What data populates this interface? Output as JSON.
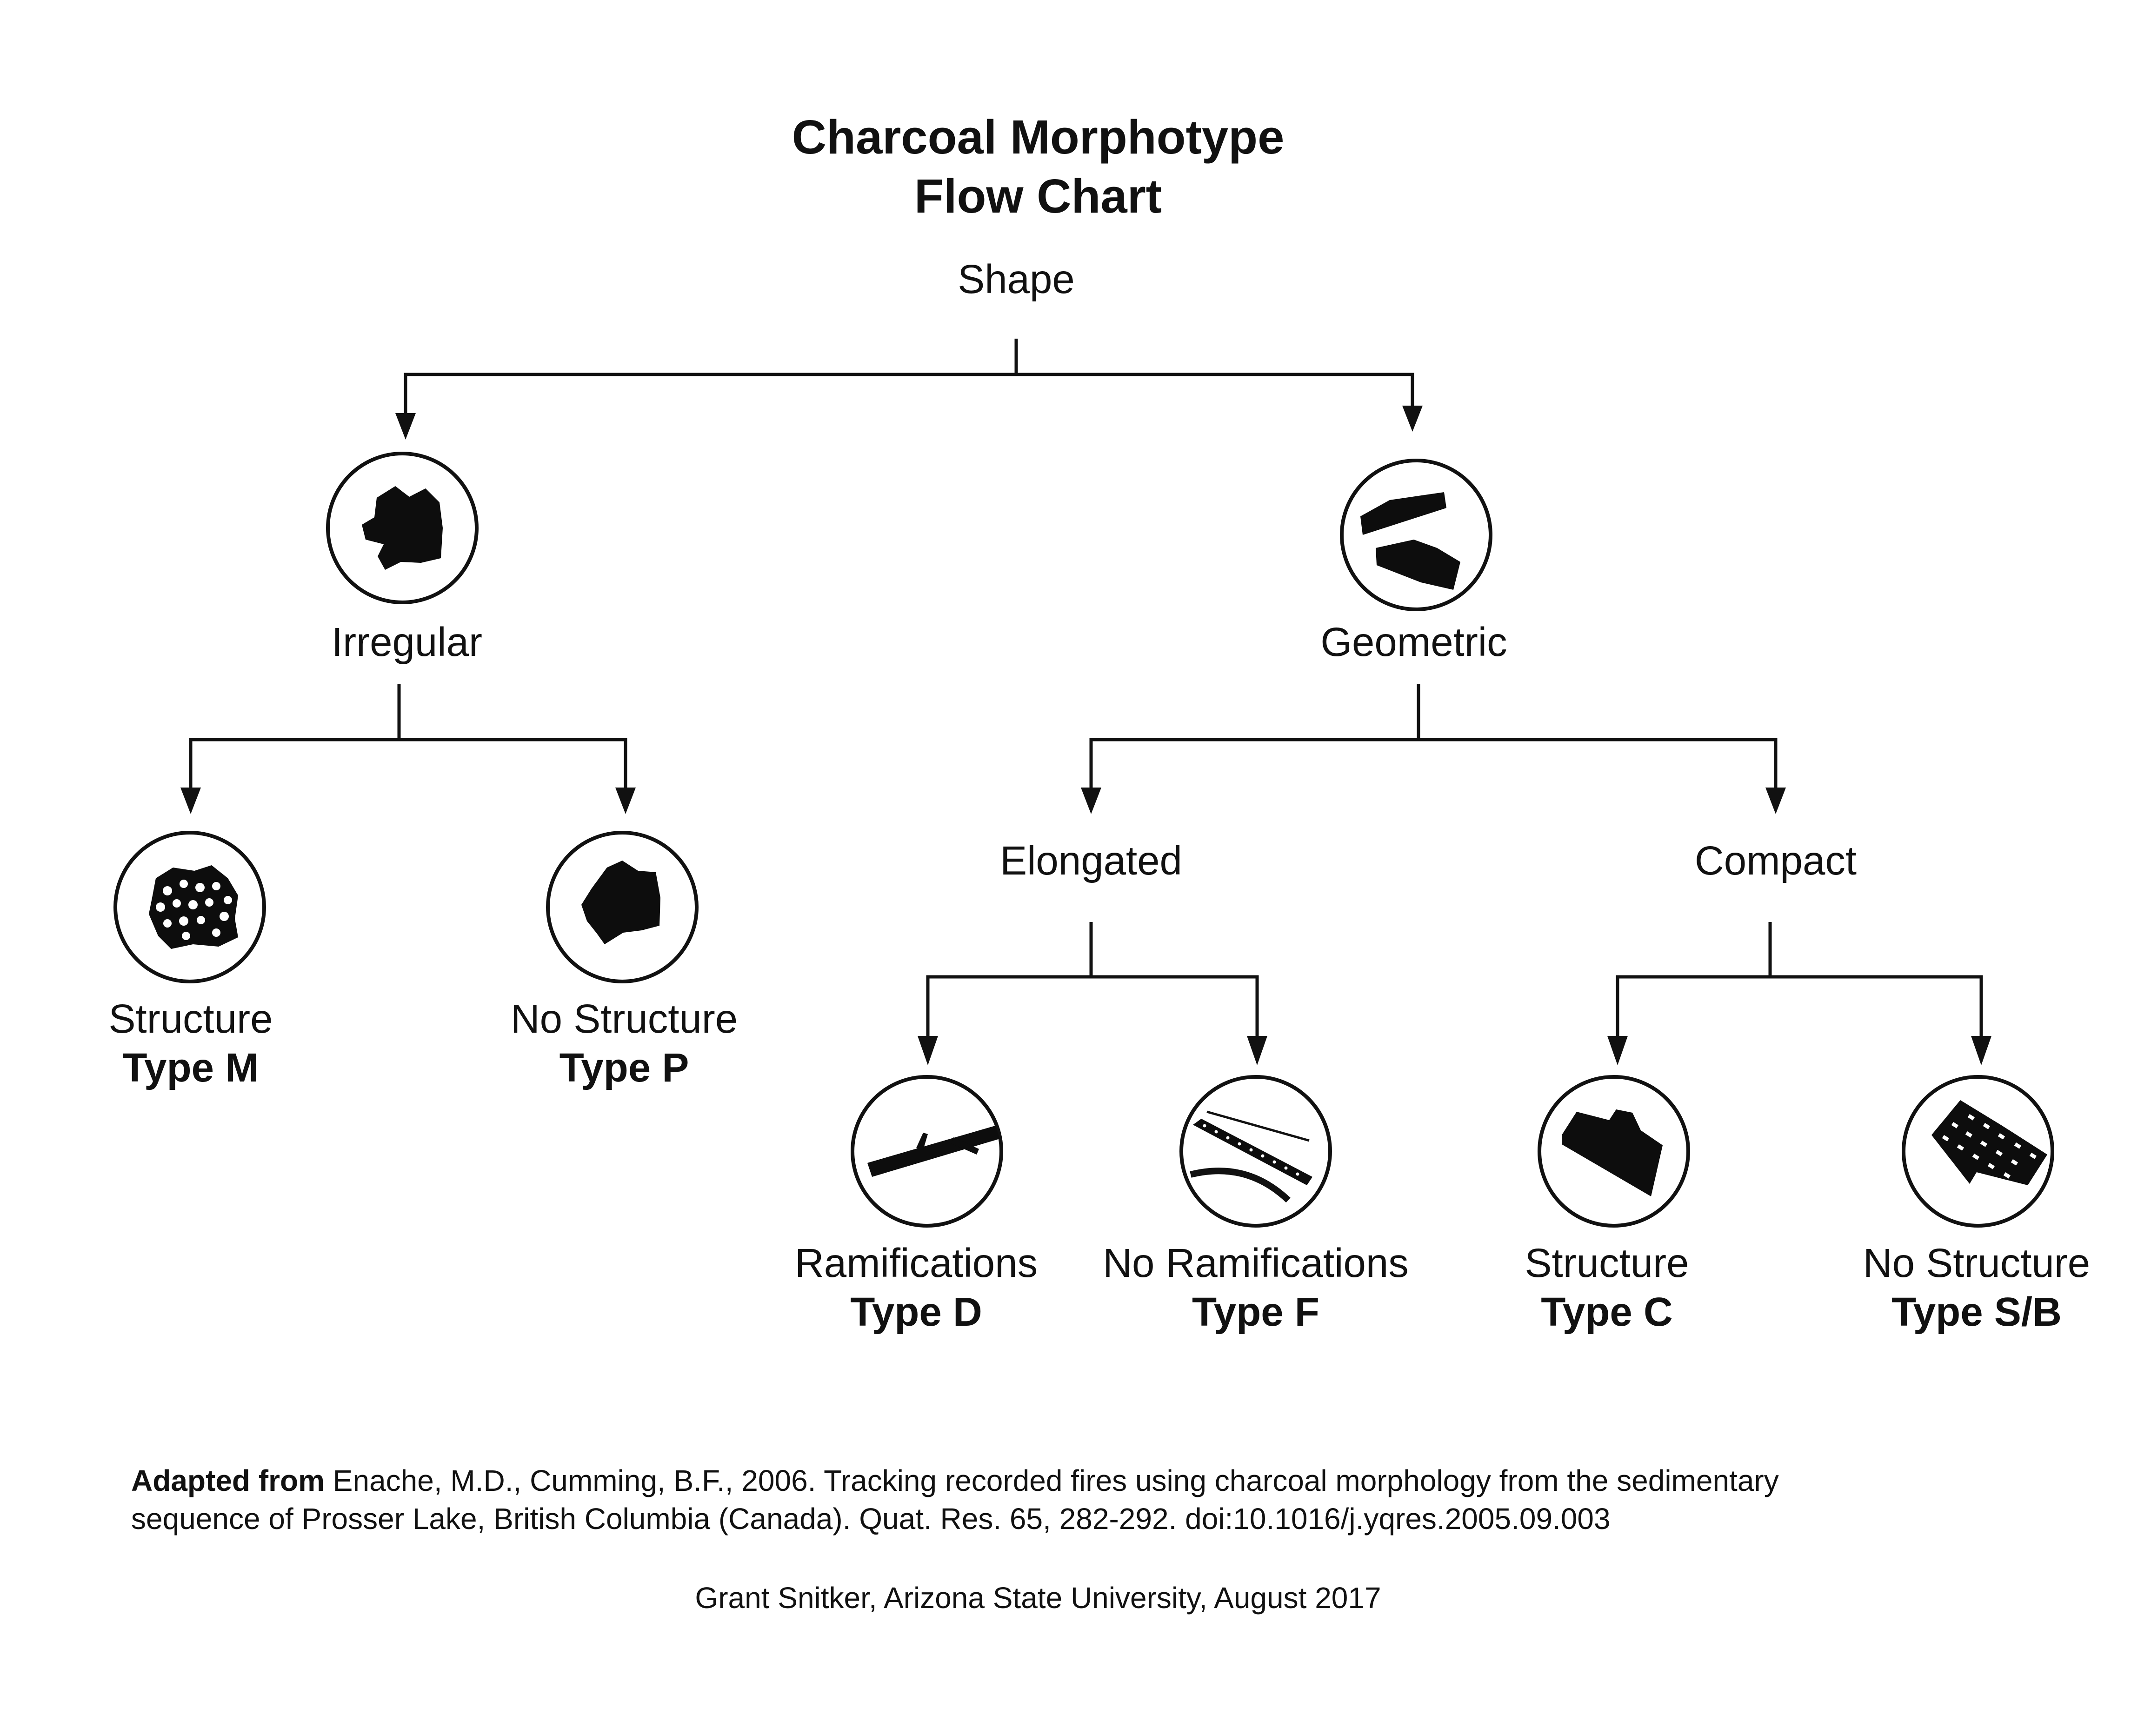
{
  "title": {
    "line1": "Charcoal Morphotype",
    "line2": "Flow Chart"
  },
  "root": "Shape",
  "nodes": {
    "irregular": "Irregular",
    "geometric": "Geometric",
    "elongated": "Elongated",
    "compact": "Compact"
  },
  "leaves": {
    "m": {
      "label": "Structure",
      "type": "Type M"
    },
    "p": {
      "label": "No Structure",
      "type": "Type P"
    },
    "d": {
      "label": "Ramifications",
      "type": "Type D"
    },
    "f": {
      "label": "No Ramifications",
      "type": "Type F"
    },
    "c": {
      "label": "Structure",
      "type": "Type C"
    },
    "sb": {
      "label": "No Structure",
      "type": "Type S/B"
    }
  },
  "citation": {
    "bold": "Adapted from",
    "line1": "Enache, M.D., Cumming, B.F., 2006. Tracking recorded fires using charcoal morphology from the sedimentary",
    "line2": "sequence of Prosser Lake, British Columbia (Canada). Quat. Res. 65, 282-292. doi:10.1016/j.yqres.2005.09.003"
  },
  "credit": "Grant Snitker, Arizona State University, August 2017",
  "icons": {
    "irregular": "charcoal-irregular-particle-icon",
    "geometric": "charcoal-geometric-particles-icon",
    "m": "charcoal-structured-particle-icon",
    "p": "charcoal-unstructured-particle-icon",
    "d": "charcoal-branched-stick-icon",
    "f": "charcoal-fiber-strands-icon",
    "c": "charcoal-compact-block-icon",
    "sb": "charcoal-perforated-block-icon"
  }
}
